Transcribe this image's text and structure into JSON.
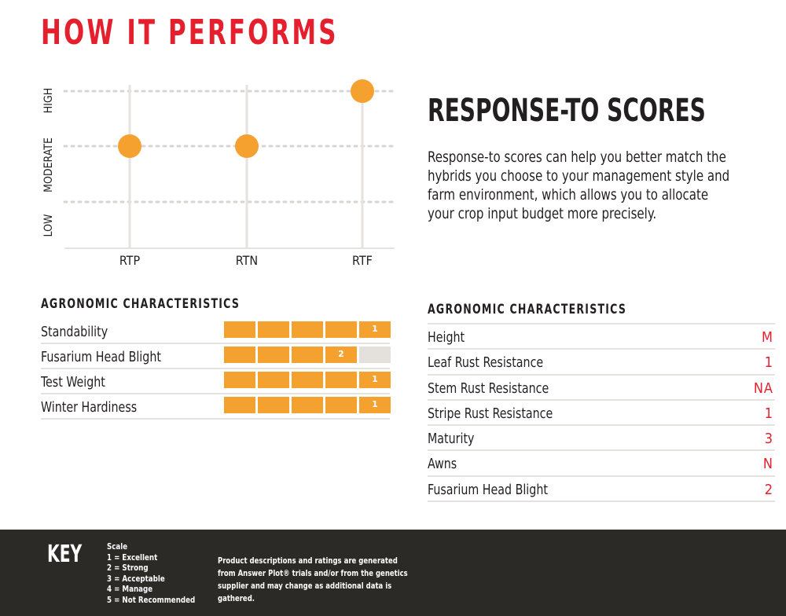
{
  "page_title": "HOW IT PERFORMS",
  "chart_data": {
    "type": "scatter",
    "categories": [
      "RTP",
      "RTN",
      "RTF"
    ],
    "y_levels": [
      "LOW",
      "MODERATE",
      "HIGH"
    ],
    "values": [
      "MODERATE",
      "MODERATE",
      "HIGH"
    ],
    "grid": true,
    "point_color": "#f5a130"
  },
  "response_to": {
    "heading": "RESPONSE-TO SCORES",
    "description": "Response-to scores can help you better match the hybrids you choose to your management style and farm environment, which allows you to allocate your crop input budget more precisely."
  },
  "left_table": {
    "title": "AGRONOMIC CHARACTERISTICS",
    "rows": [
      {
        "label": "Standability",
        "score": "1",
        "filled": 5
      },
      {
        "label": "Fusarium Head Blight",
        "score": "2",
        "filled": 4
      },
      {
        "label": "Test Weight",
        "score": "1",
        "filled": 5
      },
      {
        "label": "Winter Hardiness",
        "score": "1",
        "filled": 5
      }
    ]
  },
  "right_table": {
    "title": "AGRONOMIC CHARACTERISTICS",
    "rows": [
      {
        "label": "Height",
        "value": "M"
      },
      {
        "label": "Leaf Rust Resistance",
        "value": "1"
      },
      {
        "label": "Stem Rust Resistance",
        "value": "NA"
      },
      {
        "label": "Stripe Rust Resistance",
        "value": "1"
      },
      {
        "label": "Maturity",
        "value": "3"
      },
      {
        "label": "Awns",
        "value": "N"
      },
      {
        "label": "Fusarium Head Blight",
        "value": "2"
      }
    ]
  },
  "key": {
    "title": "KEY",
    "scale_title": "Scale",
    "scale_items": [
      "1 = Excellent",
      "2 = Strong",
      "3 = Acceptable",
      "4 = Manage",
      "5 = Not Recommended"
    ],
    "note": "Product descriptions and ratings are generated from Answer Plot® trials and/or from the genetics supplier and may change as additional data is gathered."
  },
  "colors": {
    "accent_red": "#e4202f",
    "bar_orange": "#f5a130",
    "bar_empty": "#e4e1dd",
    "footer_bg": "#2c2a26"
  }
}
